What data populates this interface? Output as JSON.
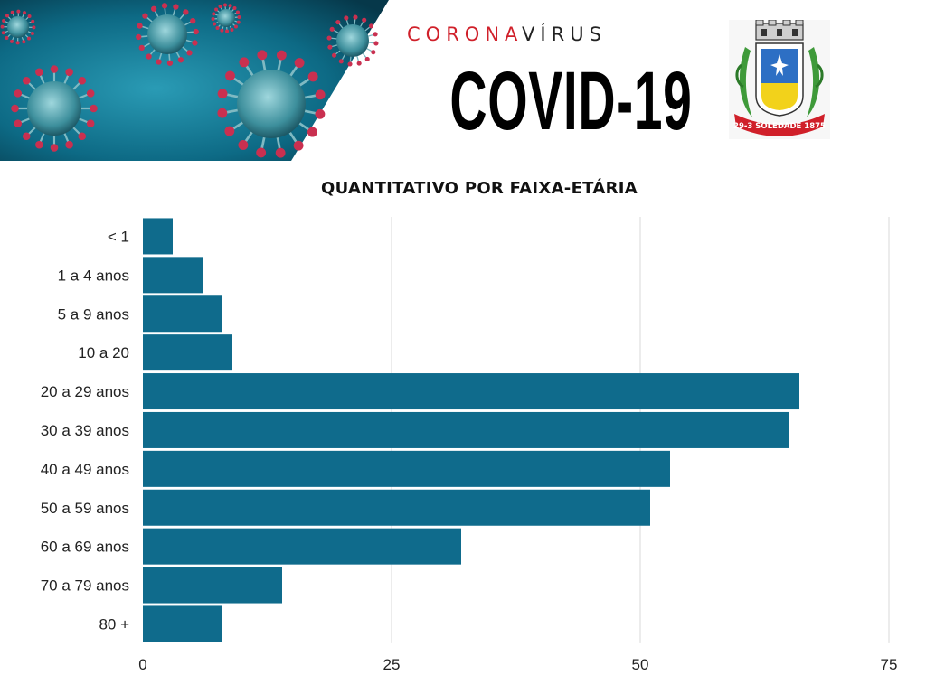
{
  "header": {
    "corona_red": "CORONA",
    "corona_dark": "VÍRUS",
    "title": "COVID-19",
    "crest_text": "29-3 SOLEDADE 1875"
  },
  "colors": {
    "accent_red": "#d0202a",
    "bar": "#0f6b8c",
    "virus_bg": "#0d6a85"
  },
  "chart_data": {
    "type": "bar",
    "orientation": "horizontal",
    "title": "QUANTITATIVO POR FAIXA-ETÁRIA",
    "categories": [
      "< 1",
      "1 a 4 anos",
      "5 a 9 anos",
      "10 a 20",
      "20 a 29 anos",
      "30 a 39 anos",
      "40 a 49 anos",
      "50 a 59 anos",
      "60 a 69 anos",
      "70 a 79 anos",
      "80 +"
    ],
    "values": [
      3,
      6,
      8,
      9,
      66,
      65,
      53,
      51,
      32,
      14,
      8
    ],
    "xlim": [
      0,
      75
    ],
    "xticks": [
      0,
      25,
      50,
      75
    ],
    "grid": true,
    "legend": "none"
  }
}
